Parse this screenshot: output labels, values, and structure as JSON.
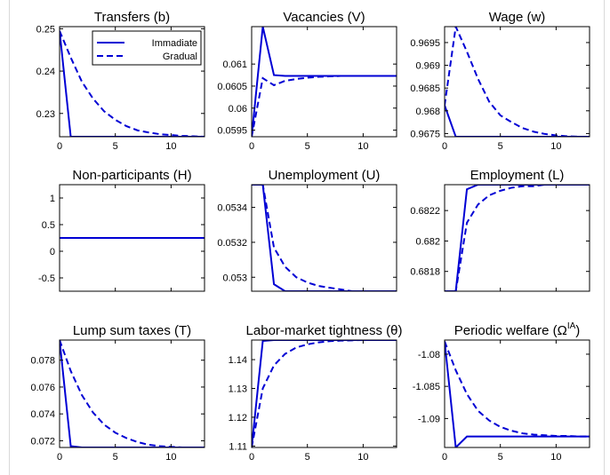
{
  "legend": {
    "entries": [
      {
        "label": "Immadiate",
        "style": "solid"
      },
      {
        "label": "Gradual",
        "style": "dashed"
      }
    ],
    "placement": "top-right of first panel"
  },
  "colors": {
    "series": "#0000d4",
    "axes": "#000000",
    "background": "#ffffff"
  },
  "chart_data": [
    {
      "type": "line",
      "title": "Transfers (b)",
      "xlim": [
        0,
        13
      ],
      "ylim": [
        0.2245,
        0.2505
      ],
      "xticks": [
        0,
        5,
        10
      ],
      "xtick_labels": [
        "0",
        "5",
        "10"
      ],
      "yticks": [
        0.23,
        0.24,
        0.25
      ],
      "ytick_labels": [
        "0.23",
        "0.24",
        "0.25"
      ],
      "x": [
        0,
        1,
        2,
        3,
        4,
        5,
        6,
        7,
        8,
        9,
        10,
        11,
        12,
        13
      ],
      "series": [
        {
          "name": "Immadiate",
          "values": [
            0.2495,
            0.2245,
            0.2245,
            0.2245,
            0.2245,
            0.2245,
            0.2245,
            0.2245,
            0.2245,
            0.2245,
            0.2245,
            0.2245,
            0.2245,
            0.2245
          ]
        },
        {
          "name": "Gradual",
          "values": [
            0.2495,
            0.2432,
            0.2375,
            0.2335,
            0.2305,
            0.2285,
            0.227,
            0.226,
            0.2255,
            0.2251,
            0.2249,
            0.2247,
            0.2246,
            0.2245
          ]
        }
      ]
    },
    {
      "type": "line",
      "title": "Vacancies (V)",
      "xlim": [
        0,
        13
      ],
      "ylim": [
        0.05935,
        0.06185
      ],
      "xticks": [
        0,
        5,
        10
      ],
      "xtick_labels": [
        "0",
        "5",
        "10"
      ],
      "yticks": [
        0.0595,
        0.06,
        0.0605,
        0.061
      ],
      "ytick_labels": [
        "0.0595",
        "0.06",
        "0.0605",
        "0.061"
      ],
      "x": [
        0,
        1,
        2,
        3,
        4,
        5,
        6,
        7,
        8,
        9,
        10,
        11,
        12,
        13
      ],
      "series": [
        {
          "name": "Immadiate",
          "values": [
            0.05935,
            0.06185,
            0.06075,
            0.06073,
            0.06073,
            0.06073,
            0.06073,
            0.06073,
            0.06073,
            0.06073,
            0.06073,
            0.06073,
            0.06073,
            0.06073
          ]
        },
        {
          "name": "Gradual",
          "values": [
            0.05935,
            0.06068,
            0.06052,
            0.06062,
            0.06066,
            0.06069,
            0.06071,
            0.06072,
            0.06073,
            0.06073,
            0.06073,
            0.06073,
            0.06073,
            0.06073
          ]
        }
      ]
    },
    {
      "type": "line",
      "title": "Wage (w)",
      "xlim": [
        0,
        13
      ],
      "ylim": [
        0.96743,
        0.96985
      ],
      "xticks": [
        0,
        5,
        10
      ],
      "xtick_labels": [
        "0",
        "5",
        "10"
      ],
      "yticks": [
        0.9675,
        0.968,
        0.9685,
        0.969,
        0.9695
      ],
      "ytick_labels": [
        "0.9675",
        "0.968",
        "0.9685",
        "0.969",
        "0.9695"
      ],
      "x": [
        0,
        1,
        2,
        3,
        4,
        5,
        6,
        7,
        8,
        9,
        10,
        11,
        12,
        13
      ],
      "series": [
        {
          "name": "Immadiate",
          "values": [
            0.96812,
            0.96743,
            0.96743,
            0.96743,
            0.96743,
            0.96743,
            0.96743,
            0.96743,
            0.96743,
            0.96743,
            0.96743,
            0.96743,
            0.96743,
            0.96743
          ]
        },
        {
          "name": "Gradual",
          "values": [
            0.96812,
            0.96985,
            0.9693,
            0.9687,
            0.9682,
            0.9679,
            0.96775,
            0.96762,
            0.96754,
            0.96749,
            0.96746,
            0.96744,
            0.96743,
            0.96743
          ]
        }
      ]
    },
    {
      "type": "line",
      "title": "Non-participants (H)",
      "xlim": [
        0,
        13
      ],
      "ylim": [
        -0.75,
        1.25
      ],
      "xticks": [
        0,
        5,
        10
      ],
      "xtick_labels": [
        "",
        "",
        ""
      ],
      "yticks": [
        -0.5,
        0,
        0.5,
        1
      ],
      "ytick_labels": [
        "-0.5",
        "0",
        "0.5",
        "1"
      ],
      "x": [
        0,
        1,
        2,
        3,
        4,
        5,
        6,
        7,
        8,
        9,
        10,
        11,
        12,
        13
      ],
      "series": [
        {
          "name": "Immadiate",
          "values": [
            0.25,
            0.25,
            0.25,
            0.25,
            0.25,
            0.25,
            0.25,
            0.25,
            0.25,
            0.25,
            0.25,
            0.25,
            0.25,
            0.25
          ]
        },
        {
          "name": "Gradual",
          "values": [
            0.25,
            0.25,
            0.25,
            0.25,
            0.25,
            0.25,
            0.25,
            0.25,
            0.25,
            0.25,
            0.25,
            0.25,
            0.25,
            0.25
          ]
        }
      ]
    },
    {
      "type": "line",
      "title": "Unemployment (U)",
      "xlim": [
        0,
        13
      ],
      "ylim": [
        0.05292,
        0.05353
      ],
      "xticks": [
        0,
        5,
        10
      ],
      "xtick_labels": [
        "",
        "",
        ""
      ],
      "yticks": [
        0.053,
        0.0532,
        0.0534
      ],
      "ytick_labels": [
        "0.053",
        "0.0532",
        "0.0534"
      ],
      "x": [
        0,
        1,
        2,
        3,
        4,
        5,
        6,
        7,
        8,
        9,
        10,
        11,
        12,
        13
      ],
      "series": [
        {
          "name": "Immadiate",
          "values": [
            0.05353,
            0.05353,
            0.05296,
            0.05292,
            0.05292,
            0.05292,
            0.05292,
            0.05292,
            0.05292,
            0.05292,
            0.05292,
            0.05292,
            0.05292,
            0.05292
          ]
        },
        {
          "name": "Gradual",
          "values": [
            0.05353,
            0.05353,
            0.05317,
            0.05306,
            0.053,
            0.05297,
            0.05295,
            0.05294,
            0.05293,
            0.05292,
            0.05292,
            0.05292,
            0.05292,
            0.05292
          ]
        }
      ]
    },
    {
      "type": "line",
      "title": "Employment (L)",
      "xlim": [
        0,
        13
      ],
      "ylim": [
        0.68167,
        0.68237
      ],
      "xticks": [
        0,
        5,
        10
      ],
      "xtick_labels": [
        "",
        "",
        ""
      ],
      "yticks": [
        0.6818,
        0.682,
        0.6822
      ],
      "ytick_labels": [
        "0.6818",
        "0.682",
        "0.6822"
      ],
      "x": [
        0,
        1,
        2,
        3,
        4,
        5,
        6,
        7,
        8,
        9,
        10,
        11,
        12,
        13
      ],
      "series": [
        {
          "name": "Immadiate",
          "values": [
            0.68167,
            0.68167,
            0.68234,
            0.68237,
            0.68237,
            0.68237,
            0.68237,
            0.68237,
            0.68237,
            0.68237,
            0.68237,
            0.68237,
            0.68237,
            0.68237
          ]
        },
        {
          "name": "Gradual",
          "values": [
            0.68167,
            0.68167,
            0.68212,
            0.68224,
            0.6823,
            0.68233,
            0.68235,
            0.68236,
            0.68236,
            0.68237,
            0.68237,
            0.68237,
            0.68237,
            0.68237
          ]
        }
      ]
    },
    {
      "type": "line",
      "title": "Lump sum taxes (T)",
      "xlim": [
        0,
        13
      ],
      "ylim": [
        0.0715,
        0.0795
      ],
      "xticks": [
        0,
        5,
        10
      ],
      "xtick_labels": [
        "0",
        "5",
        "10"
      ],
      "yticks": [
        0.072,
        0.074,
        0.076,
        0.078
      ],
      "ytick_labels": [
        "0.072",
        "0.074",
        "0.076",
        "0.078"
      ],
      "x": [
        0,
        1,
        2,
        3,
        4,
        5,
        6,
        7,
        8,
        9,
        10,
        11,
        12,
        13
      ],
      "series": [
        {
          "name": "Immadiate",
          "values": [
            0.0795,
            0.0716,
            0.0715,
            0.0715,
            0.0715,
            0.0715,
            0.0715,
            0.0715,
            0.0715,
            0.0715,
            0.0715,
            0.0715,
            0.0715,
            0.0715
          ]
        },
        {
          "name": "Gradual",
          "values": [
            0.0795,
            0.0772,
            0.0754,
            0.0741,
            0.0732,
            0.0726,
            0.0722,
            0.0719,
            0.0717,
            0.0716,
            0.07155,
            0.0715,
            0.0715,
            0.0715
          ]
        }
      ]
    },
    {
      "type": "line",
      "title": "Labor-market tightness (θ)",
      "xlim": [
        0,
        13
      ],
      "ylim": [
        1.1095,
        1.1468
      ],
      "xticks": [
        0,
        5,
        10
      ],
      "xtick_labels": [
        "0",
        "5",
        "10"
      ],
      "yticks": [
        1.11,
        1.12,
        1.13,
        1.14
      ],
      "ytick_labels": [
        "1.11",
        "1.12",
        "1.13",
        "1.14"
      ],
      "x": [
        0,
        1,
        2,
        3,
        4,
        5,
        6,
        7,
        8,
        9,
        10,
        11,
        12,
        13
      ],
      "series": [
        {
          "name": "Immadiate",
          "values": [
            1.1095,
            1.1465,
            1.1468,
            1.1468,
            1.1468,
            1.1468,
            1.1468,
            1.1468,
            1.1468,
            1.1468,
            1.1468,
            1.1468,
            1.1468,
            1.1468
          ]
        },
        {
          "name": "Gradual",
          "values": [
            1.1095,
            1.13,
            1.138,
            1.142,
            1.1442,
            1.1453,
            1.146,
            1.1464,
            1.1466,
            1.1467,
            1.1468,
            1.1468,
            1.1468,
            1.1468
          ]
        }
      ]
    },
    {
      "type": "line",
      "title": "Periodic welfare (Ω",
      "title_sup": "IA",
      "title_end": ")",
      "xlim": [
        0,
        13
      ],
      "ylim": [
        -1.0945,
        -1.0778
      ],
      "xticks": [
        0,
        5,
        10
      ],
      "xtick_labels": [
        "0",
        "5",
        "10"
      ],
      "yticks": [
        -1.09,
        -1.085,
        -1.08
      ],
      "ytick_labels": [
        "-1.09",
        "-1.085",
        "-1.08"
      ],
      "x": [
        0,
        1,
        2,
        3,
        4,
        5,
        6,
        7,
        8,
        9,
        10,
        11,
        12,
        13
      ],
      "series": [
        {
          "name": "Immadiate",
          "values": [
            -1.078,
            -1.0945,
            -1.0928,
            -1.0928,
            -1.0928,
            -1.0928,
            -1.0928,
            -1.0928,
            -1.0928,
            -1.0928,
            -1.0928,
            -1.0928,
            -1.0928,
            -1.0928
          ]
        },
        {
          "name": "Gradual",
          "values": [
            -1.078,
            -1.0825,
            -1.0862,
            -1.0888,
            -1.0903,
            -1.0913,
            -1.0919,
            -1.0923,
            -1.0925,
            -1.0926,
            -1.0927,
            -1.0927,
            -1.0928,
            -1.0928
          ]
        }
      ]
    }
  ]
}
